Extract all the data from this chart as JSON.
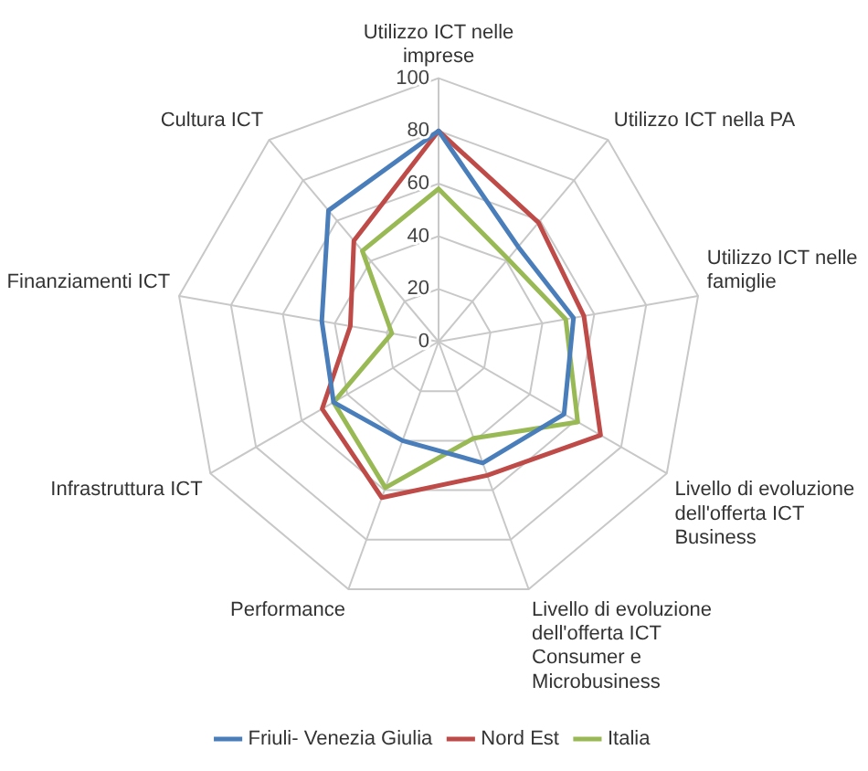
{
  "chart_data": {
    "type": "radar",
    "categories": [
      "Utilizzo ICT nelle imprese",
      "Utilizzo ICT nella PA",
      "Utilizzo ICT nelle famiglie",
      "Livello di evoluzione dell'offerta ICT Business",
      "Livello di evoluzione dell'offerta ICT Consumer e Microbusiness",
      "Performance",
      "Infrastruttura ICT",
      "Finanziamenti ICT",
      "Cultura ICT"
    ],
    "series": [
      {
        "name": "Friuli- Venezia Giulia",
        "color": "#4a7ebb",
        "values": [
          80,
          47,
          52,
          55,
          49,
          40,
          46,
          45,
          65
        ]
      },
      {
        "name": "Nord Est",
        "color": "#be4b48",
        "values": [
          80,
          59,
          56,
          71,
          54,
          63,
          51,
          34,
          50
        ]
      },
      {
        "name": "Italia",
        "color": "#98b954",
        "values": [
          58,
          41,
          49,
          61,
          39,
          59,
          46,
          18,
          45
        ]
      }
    ],
    "ylim": [
      0,
      100
    ],
    "yticks": [
      0,
      20,
      40,
      60,
      80,
      100
    ],
    "grid": true,
    "legend": "bottom",
    "marker": "none",
    "line_style": "solid"
  }
}
